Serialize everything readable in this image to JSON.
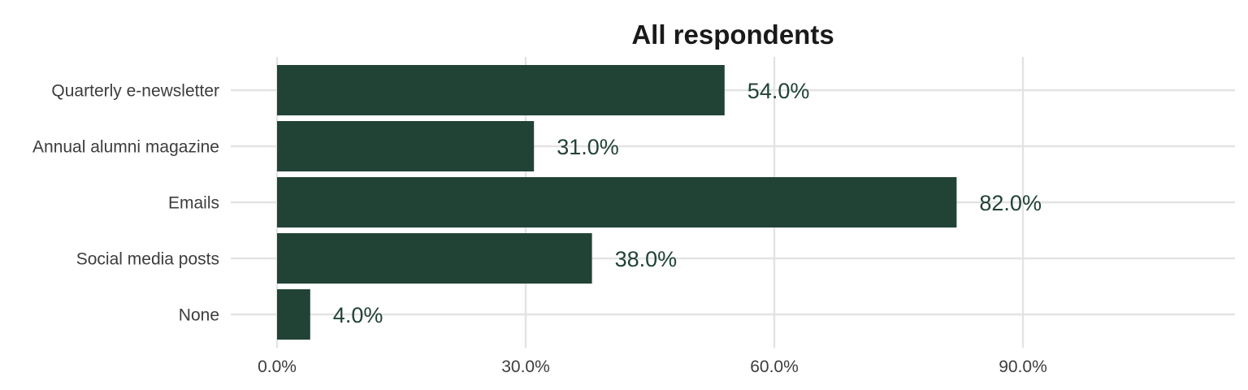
{
  "chart_data": {
    "type": "bar",
    "orientation": "horizontal",
    "title": "All respondents",
    "xlabel": "",
    "ylabel": "",
    "categories": [
      "Quarterly e-newsletter",
      "Annual alumni magazine",
      "Emails",
      "Social media posts",
      "None"
    ],
    "values": [
      54.0,
      31.0,
      82.0,
      38.0,
      4.0
    ],
    "data_labels": [
      "54.0%",
      "31.0%",
      "82.0%",
      "38.0%",
      "4.0%"
    ],
    "x_ticks": [
      0,
      30,
      60,
      90
    ],
    "x_tick_labels": [
      "0.0%",
      "30.0%",
      "60.0%",
      "90.0%"
    ],
    "xlim": [
      0,
      115
    ],
    "grid": true,
    "legend": "none",
    "colors": {
      "bar": "#214336",
      "data_label": "#214336",
      "grid": "#e3e3e3",
      "text": "#3d3d3d",
      "title": "#1a1a1a"
    }
  }
}
